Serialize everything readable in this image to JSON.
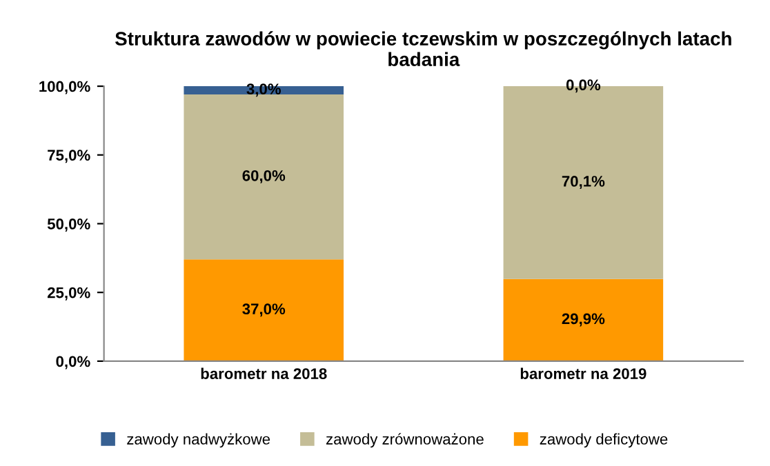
{
  "chart_data": {
    "type": "bar",
    "stacked": true,
    "title": "Struktura zawodów w powiecie tczewskim w poszczególnych latach badania",
    "categories": [
      "barometr na 2018",
      "barometr na 2019"
    ],
    "series": [
      {
        "name": "zawody deficytowe",
        "color": "#ff9900",
        "values": [
          37.0,
          29.9
        ],
        "value_labels": [
          "37,0%",
          "29,9%"
        ]
      },
      {
        "name": "zawody zrównoważone",
        "color": "#c4bd97",
        "values": [
          60.0,
          70.1
        ],
        "value_labels": [
          "60,0%",
          "70,1%"
        ]
      },
      {
        "name": "zawody nadwyżkowe",
        "color": "#376092",
        "values": [
          3.0,
          0.0
        ],
        "value_labels": [
          "3,0%",
          "0,0%"
        ]
      }
    ],
    "ylim": [
      0,
      100
    ],
    "yticks": [
      {
        "value": 0,
        "label": "0,0%"
      },
      {
        "value": 25,
        "label": "25,0%"
      },
      {
        "value": 50,
        "label": "50,0%"
      },
      {
        "value": 75,
        "label": "75,0%"
      },
      {
        "value": 100,
        "label": "100,0%"
      }
    ],
    "grid": false,
    "legend": "bottom"
  }
}
